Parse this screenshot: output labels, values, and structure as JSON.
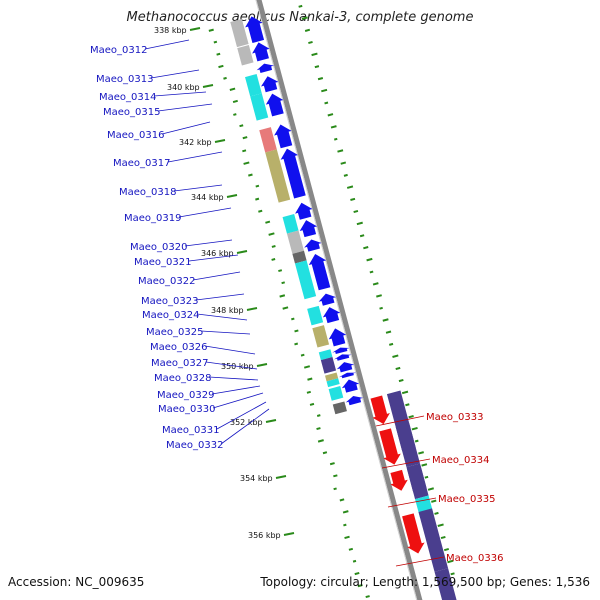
{
  "title": "Methanococcus aeolicus Nankai-3, complete genome",
  "footer": {
    "accession": "Accession: NC_009635",
    "topology": "Topology: circular; Length: 1,569,500 bp; Genes: 1,536"
  },
  "colors": {
    "forward_arrow": "#1010ee",
    "reverse_arrow": "#ee1010",
    "reverse_cds": "#4a3e8e",
    "forward_label": "#1515c0",
    "reverse_label": "#c00000",
    "gc_ticks": "#2a8a1a",
    "backbone": "#888888"
  },
  "scale_labels": [
    "338 kbp",
    "340 kbp",
    "342 kbp",
    "344 kbp",
    "346 kbp",
    "348 kbp",
    "350 kbp",
    "352 kbp",
    "354 kbp",
    "356 kbp"
  ],
  "forward_genes": [
    "Maeo_0312",
    "Maeo_0313",
    "Maeo_0314",
    "Maeo_0315",
    "Maeo_0316",
    "Maeo_0317",
    "Maeo_0318",
    "Maeo_0319",
    "Maeo_0320",
    "Maeo_0321",
    "Maeo_0322",
    "Maeo_0323",
    "Maeo_0324",
    "Maeo_0325",
    "Maeo_0326",
    "Maeo_0327",
    "Maeo_0328",
    "Maeo_0329",
    "Maeo_0330",
    "Maeo_0331",
    "Maeo_0332"
  ],
  "reverse_genes": [
    "Maeo_0333",
    "Maeo_0334",
    "Maeo_0335",
    "Maeo_0336"
  ]
}
